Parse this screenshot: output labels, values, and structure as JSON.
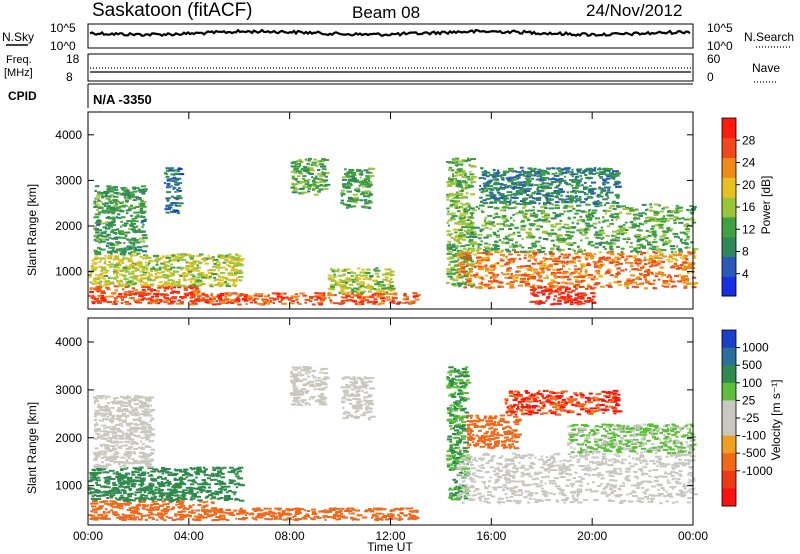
{
  "header": {
    "site": "Saskatoon (fitACF)",
    "beam": "Beam 08",
    "date": "24/Nov/2012"
  },
  "status_panels": {
    "nsky_label": "N.Sky",
    "nsky_ticks": [
      "10^5",
      "10^0"
    ],
    "nsearch_label": "N.Search",
    "nsearch_ticks": [
      "10^5",
      "10^0"
    ],
    "freq_label_1": "Freq.",
    "freq_label_2": "[MHz]",
    "freq_ticks": [
      "18",
      "8"
    ],
    "nave_label": "Nave",
    "nave_ticks": [
      "60",
      "0"
    ],
    "cpid_label": "CPID",
    "cpid_value": "N/A -3350"
  },
  "colors": {
    "power_scale": [
      "#1430e0",
      "#2a5ab8",
      "#2e8a5a",
      "#3fa040",
      "#9cc43a",
      "#e8c020",
      "#f08a18",
      "#f04818",
      "#ff1a10"
    ],
    "velocity_scale": [
      "#1a3fc8",
      "#2a6e9a",
      "#2f8a4c",
      "#5cbf3a",
      "#c8c8c0",
      "#c8c8c0",
      "#f0a020",
      "#f06818",
      "#ee3a14",
      "#ff1010"
    ]
  },
  "chart_data": [
    {
      "type": "heatmap",
      "name": "power",
      "xlabel": "",
      "ylabel": "Slant Range [km]",
      "xlim": [
        0,
        24
      ],
      "ylim": [
        180,
        4500
      ],
      "y_ticks": [
        1000,
        2000,
        3000,
        4000
      ],
      "colorbar_label": "Power [dB]",
      "colorbar_ticks": [
        "4",
        "8",
        "12",
        "16",
        "20",
        "24",
        "28"
      ],
      "colorbar_range": [
        0,
        32
      ],
      "regions": [
        {
          "t0": 0.0,
          "t1": 4.5,
          "r0": 300,
          "r1": 700,
          "value": 27
        },
        {
          "t0": 4.5,
          "t1": 13.0,
          "r0": 300,
          "r1": 550,
          "value": 26
        },
        {
          "t0": 0.0,
          "t1": 6.0,
          "r0": 700,
          "r1": 1400,
          "value": 17
        },
        {
          "t0": 0.2,
          "t1": 2.2,
          "r0": 1400,
          "r1": 2900,
          "value": 11
        },
        {
          "t0": 3.0,
          "t1": 3.6,
          "r0": 2300,
          "r1": 3300,
          "value": 7
        },
        {
          "t0": 8.0,
          "t1": 9.4,
          "r0": 2700,
          "r1": 3500,
          "value": 13
        },
        {
          "t0": 10.0,
          "t1": 11.2,
          "r0": 2400,
          "r1": 3300,
          "value": 12
        },
        {
          "t0": 9.5,
          "t1": 12.0,
          "r0": 550,
          "r1": 1100,
          "value": 16
        },
        {
          "t0": 14.2,
          "t1": 15.2,
          "r0": 700,
          "r1": 3500,
          "value": 14
        },
        {
          "t0": 14.6,
          "t1": 24.0,
          "r0": 650,
          "r1": 1450,
          "value": 24
        },
        {
          "t0": 17.5,
          "t1": 20.0,
          "r0": 300,
          "r1": 700,
          "value": 29
        },
        {
          "t0": 15.0,
          "t1": 24.0,
          "r0": 1450,
          "r1": 2500,
          "value": 13
        },
        {
          "t0": 15.5,
          "t1": 21.0,
          "r0": 2500,
          "r1": 3300,
          "value": 9
        }
      ]
    },
    {
      "type": "heatmap",
      "name": "velocity",
      "xlabel": "Time UT",
      "ylabel": "Slant Range [km]",
      "xlim": [
        0,
        24
      ],
      "ylim": [
        180,
        4500
      ],
      "x_ticks": [
        "00:00",
        "04:00",
        "08:00",
        "12:00",
        "16:00",
        "20:00",
        "00:00"
      ],
      "y_ticks": [
        1000,
        2000,
        3000,
        4000
      ],
      "colorbar_label": "Velocity [m s⁻¹]",
      "colorbar_ticks": [
        "1000",
        "500",
        "100",
        "25",
        "-25",
        "-100",
        "-500",
        "-1000"
      ],
      "regions": [
        {
          "t0": 0.0,
          "t1": 5.0,
          "r0": 300,
          "r1": 700,
          "value": -150
        },
        {
          "t0": 5.0,
          "t1": 13.0,
          "r0": 300,
          "r1": 550,
          "value": -120
        },
        {
          "t0": 0.0,
          "t1": 6.0,
          "r0": 700,
          "r1": 1400,
          "value": 80
        },
        {
          "t0": 0.2,
          "t1": 2.5,
          "r0": 1400,
          "r1": 2900,
          "value": 0
        },
        {
          "t0": 8.0,
          "t1": 9.4,
          "r0": 2700,
          "r1": 3500,
          "value": 0
        },
        {
          "t0": 10.0,
          "t1": 11.2,
          "r0": 2400,
          "r1": 3300,
          "value": 0
        },
        {
          "t0": 14.2,
          "t1": 15.0,
          "r0": 700,
          "r1": 3500,
          "value": 60
        },
        {
          "t0": 14.6,
          "t1": 24.0,
          "r0": 650,
          "r1": 1700,
          "value": 0
        },
        {
          "t0": 15.0,
          "t1": 17.0,
          "r0": 1800,
          "r1": 2500,
          "value": -300
        },
        {
          "t0": 16.5,
          "t1": 21.0,
          "r0": 2500,
          "r1": 3000,
          "value": -500
        },
        {
          "t0": 19.0,
          "t1": 24.0,
          "r0": 1700,
          "r1": 2300,
          "value": 30
        }
      ]
    }
  ]
}
